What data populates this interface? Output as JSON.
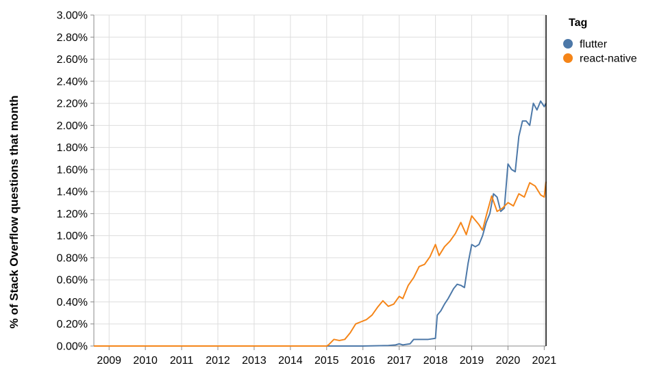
{
  "chart_data": {
    "type": "line",
    "title": "",
    "xlabel": "",
    "ylabel": "% of Stack Overflow questions that month",
    "xlim": [
      2008.58,
      2021.05
    ],
    "ylim": [
      0,
      3.0
    ],
    "x_ticks": [
      "2009",
      "2010",
      "2011",
      "2012",
      "2013",
      "2014",
      "2015",
      "2016",
      "2017",
      "2018",
      "2019",
      "2020",
      "2021"
    ],
    "y_ticks": [
      "0.00%",
      "0.20%",
      "0.40%",
      "0.60%",
      "0.80%",
      "1.00%",
      "1.20%",
      "1.40%",
      "1.60%",
      "1.80%",
      "2.00%",
      "2.20%",
      "2.40%",
      "2.60%",
      "2.80%",
      "3.00%"
    ],
    "grid": true,
    "legend": {
      "title": "Tag",
      "position": "top-right"
    },
    "series": [
      {
        "name": "flutter",
        "color": "#4c78a8",
        "x": [
          2008.58,
          2015.0,
          2016.0,
          2016.7,
          2016.9,
          2017.0,
          2017.1,
          2017.3,
          2017.4,
          2017.6,
          2017.8,
          2018.0,
          2018.05,
          2018.1,
          2018.15,
          2018.25,
          2018.35,
          2018.5,
          2018.6,
          2018.7,
          2018.8,
          2018.9,
          2019.0,
          2019.1,
          2019.2,
          2019.3,
          2019.4,
          2019.5,
          2019.6,
          2019.7,
          2019.8,
          2019.9,
          2020.0,
          2020.1,
          2020.2,
          2020.3,
          2020.4,
          2020.5,
          2020.6,
          2020.7,
          2020.8,
          2020.9,
          2021.0,
          2021.05
        ],
        "y": [
          0.0,
          0.0,
          0.0,
          0.005,
          0.01,
          0.02,
          0.01,
          0.02,
          0.06,
          0.06,
          0.06,
          0.07,
          0.28,
          0.3,
          0.32,
          0.38,
          0.43,
          0.52,
          0.56,
          0.55,
          0.53,
          0.75,
          0.92,
          0.9,
          0.92,
          1.0,
          1.12,
          1.2,
          1.38,
          1.35,
          1.22,
          1.25,
          1.65,
          1.6,
          1.58,
          1.9,
          2.04,
          2.04,
          2.0,
          2.2,
          2.14,
          2.22,
          2.17,
          2.2
        ]
      },
      {
        "name": "react-native",
        "color": "#f58518",
        "x": [
          2008.58,
          2015.0,
          2015.05,
          2015.2,
          2015.35,
          2015.5,
          2015.65,
          2015.8,
          2015.95,
          2016.1,
          2016.25,
          2016.4,
          2016.55,
          2016.7,
          2016.85,
          2017.0,
          2017.1,
          2017.25,
          2017.4,
          2017.55,
          2017.7,
          2017.85,
          2018.0,
          2018.1,
          2018.25,
          2018.4,
          2018.55,
          2018.7,
          2018.85,
          2019.0,
          2019.1,
          2019.2,
          2019.3,
          2019.4,
          2019.55,
          2019.7,
          2019.85,
          2020.0,
          2020.15,
          2020.3,
          2020.45,
          2020.6,
          2020.75,
          2020.9,
          2021.0,
          2021.05
        ],
        "y": [
          0.0,
          0.0,
          0.01,
          0.06,
          0.05,
          0.06,
          0.12,
          0.2,
          0.22,
          0.24,
          0.28,
          0.35,
          0.41,
          0.36,
          0.38,
          0.45,
          0.43,
          0.55,
          0.62,
          0.72,
          0.74,
          0.81,
          0.92,
          0.82,
          0.9,
          0.95,
          1.02,
          1.12,
          1.01,
          1.18,
          1.14,
          1.1,
          1.05,
          1.18,
          1.36,
          1.22,
          1.25,
          1.3,
          1.27,
          1.38,
          1.35,
          1.48,
          1.45,
          1.37,
          1.35,
          1.49
        ]
      }
    ]
  }
}
